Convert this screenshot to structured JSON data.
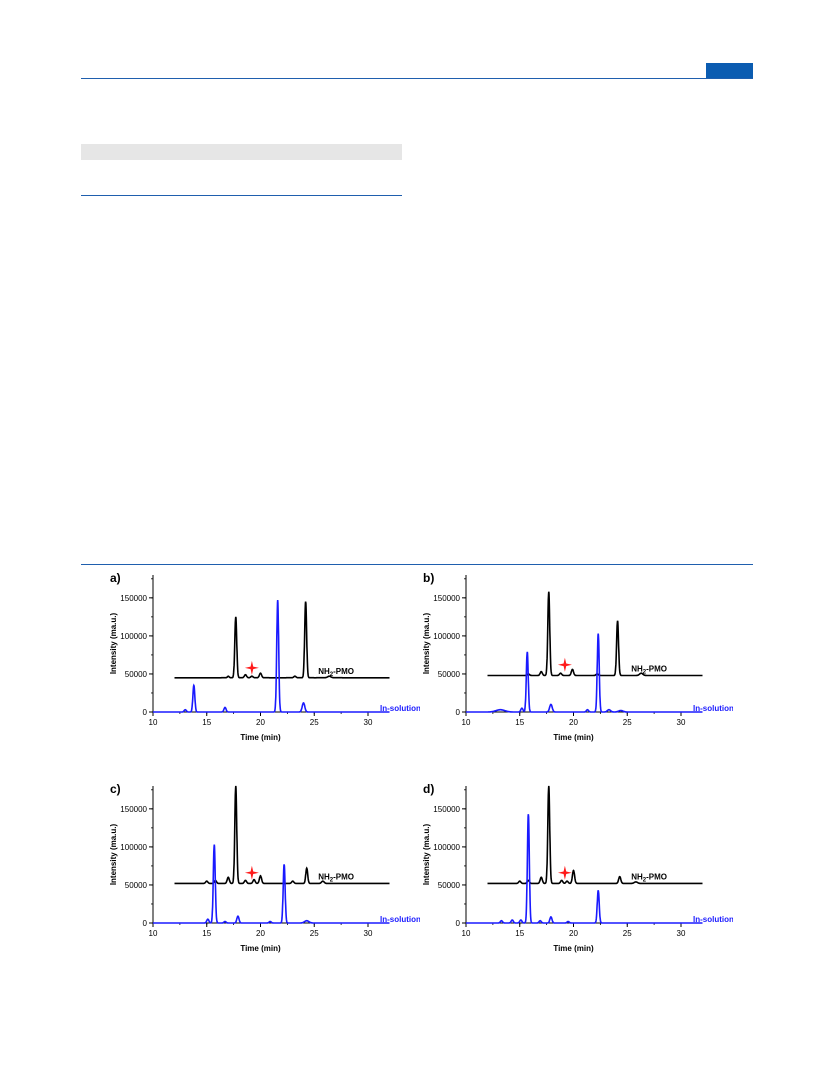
{
  "page": {
    "header_color": "#0b5cb1"
  },
  "colors": {
    "nh2_pmo": "#000000",
    "in_solution": "#1a1aff",
    "star": "#ff1a1a"
  },
  "chart_data": [
    {
      "panel_label": "a)",
      "type": "line",
      "xlabel": "Time (min)",
      "ylabel": "Intensity (ma.u.)",
      "xlim": [
        10,
        30
      ],
      "ylim": [
        0,
        180000
      ],
      "xticks": [
        10,
        15,
        20,
        25,
        30
      ],
      "yticks": [
        0,
        50000,
        100000,
        150000
      ],
      "star_marker": {
        "x": 19.2,
        "y": 58000
      },
      "series": [
        {
          "name": "NH2-PMO",
          "color": "#000000",
          "x_range": [
            12,
            32
          ],
          "baseline": 45000,
          "peaks": [
            [
              17.0,
              2000,
              0.08
            ],
            [
              17.7,
              80000,
              0.09
            ],
            [
              18.6,
              4000,
              0.1
            ],
            [
              19.2,
              2000,
              0.1
            ],
            [
              20.0,
              6000,
              0.1
            ],
            [
              23.2,
              2000,
              0.1
            ],
            [
              24.2,
              100000,
              0.09
            ],
            [
              26.4,
              2000,
              0.15
            ]
          ]
        },
        {
          "name": "In-solution",
          "color": "#1a1aff",
          "x_range": [
            10,
            32
          ],
          "baseline": 0,
          "peaks": [
            [
              13.0,
              3000,
              0.1
            ],
            [
              13.8,
              35000,
              0.09
            ],
            [
              16.7,
              6000,
              0.1
            ],
            [
              21.6,
              147000,
              0.09
            ],
            [
              24.0,
              12000,
              0.12
            ]
          ]
        }
      ]
    },
    {
      "panel_label": "b)",
      "type": "line",
      "xlabel": "Time (min)",
      "ylabel": "Intensity (ma.u.)",
      "xlim": [
        10,
        30
      ],
      "ylim": [
        0,
        180000
      ],
      "xticks": [
        10,
        15,
        20,
        25,
        30
      ],
      "yticks": [
        0,
        50000,
        100000,
        150000
      ],
      "star_marker": {
        "x": 19.2,
        "y": 62000
      },
      "series": [
        {
          "name": "NH2-PMO",
          "color": "#000000",
          "x_range": [
            12,
            32
          ],
          "baseline": 48000,
          "peaks": [
            [
              15.8,
              2000,
              0.1
            ],
            [
              17.0,
              5000,
              0.1
            ],
            [
              17.7,
              110000,
              0.09
            ],
            [
              18.8,
              3000,
              0.1
            ],
            [
              19.9,
              8000,
              0.1
            ],
            [
              22.2,
              2000,
              0.1
            ],
            [
              24.1,
              72000,
              0.09
            ],
            [
              26.3,
              3000,
              0.15
            ]
          ]
        },
        {
          "name": "In-solution",
          "color": "#1a1aff",
          "x_range": [
            10,
            32
          ],
          "baseline": 0,
          "peaks": [
            [
              13.2,
              3000,
              0.4
            ],
            [
              15.2,
              5000,
              0.1
            ],
            [
              15.7,
              79000,
              0.09
            ],
            [
              17.9,
              10000,
              0.12
            ],
            [
              21.3,
              3000,
              0.1
            ],
            [
              22.3,
              103000,
              0.09
            ],
            [
              23.3,
              3000,
              0.15
            ],
            [
              24.4,
              2000,
              0.2
            ]
          ]
        }
      ]
    },
    {
      "panel_label": "c)",
      "type": "line",
      "xlabel": "Time (min)",
      "ylabel": "Intensity (ma.u.)",
      "xlim": [
        10,
        30
      ],
      "ylim": [
        0,
        180000
      ],
      "xticks": [
        10,
        15,
        20,
        25,
        30
      ],
      "yticks": [
        0,
        50000,
        100000,
        150000
      ],
      "star_marker": {
        "x": 19.2,
        "y": 66000
      },
      "series": [
        {
          "name": "NH2-PMO",
          "color": "#000000",
          "x_range": [
            12,
            32
          ],
          "baseline": 52000,
          "peaks": [
            [
              15.0,
              3000,
              0.1
            ],
            [
              15.8,
              4000,
              0.1
            ],
            [
              17.0,
              8000,
              0.1
            ],
            [
              17.7,
              128000,
              0.09
            ],
            [
              18.6,
              4000,
              0.1
            ],
            [
              19.4,
              5000,
              0.1
            ],
            [
              20.0,
              10000,
              0.1
            ],
            [
              23.0,
              3000,
              0.1
            ],
            [
              24.3,
              20000,
              0.09
            ],
            [
              25.8,
              3000,
              0.12
            ]
          ]
        },
        {
          "name": "In-solution",
          "color": "#1a1aff",
          "x_range": [
            10,
            32
          ],
          "baseline": 0,
          "peaks": [
            [
              15.1,
              5000,
              0.1
            ],
            [
              15.7,
              103000,
              0.09
            ],
            [
              16.7,
              2000,
              0.1
            ],
            [
              17.9,
              9000,
              0.1
            ],
            [
              20.9,
              2000,
              0.1
            ],
            [
              22.2,
              77000,
              0.09
            ],
            [
              24.3,
              3000,
              0.2
            ]
          ]
        }
      ]
    },
    {
      "panel_label": "d)",
      "type": "line",
      "xlabel": "Time (min)",
      "ylabel": "Intensity (ma.u.)",
      "xlim": [
        10,
        30
      ],
      "ylim": [
        0,
        180000
      ],
      "xticks": [
        10,
        15,
        20,
        25,
        30
      ],
      "yticks": [
        0,
        50000,
        100000,
        150000
      ],
      "star_marker": {
        "x": 19.2,
        "y": 66000
      },
      "series": [
        {
          "name": "NH2-PMO",
          "color": "#000000",
          "x_range": [
            12,
            32
          ],
          "baseline": 52000,
          "peaks": [
            [
              15.0,
              3000,
              0.1
            ],
            [
              15.8,
              4000,
              0.1
            ],
            [
              17.0,
              8000,
              0.1
            ],
            [
              17.7,
              128000,
              0.09
            ],
            [
              18.9,
              4000,
              0.1
            ],
            [
              19.4,
              3000,
              0.1
            ],
            [
              20.0,
              17000,
              0.1
            ],
            [
              24.3,
              9000,
              0.1
            ],
            [
              25.8,
              2000,
              0.15
            ]
          ]
        },
        {
          "name": "In-solution",
          "color": "#1a1aff",
          "x_range": [
            10,
            32
          ],
          "baseline": 0,
          "peaks": [
            [
              13.3,
              3000,
              0.1
            ],
            [
              14.3,
              4000,
              0.1
            ],
            [
              15.1,
              4000,
              0.1
            ],
            [
              15.8,
              143000,
              0.09
            ],
            [
              16.9,
              3000,
              0.1
            ],
            [
              17.9,
              8000,
              0.1
            ],
            [
              19.5,
              2000,
              0.1
            ],
            [
              22.3,
              43000,
              0.09
            ]
          ]
        }
      ]
    }
  ]
}
